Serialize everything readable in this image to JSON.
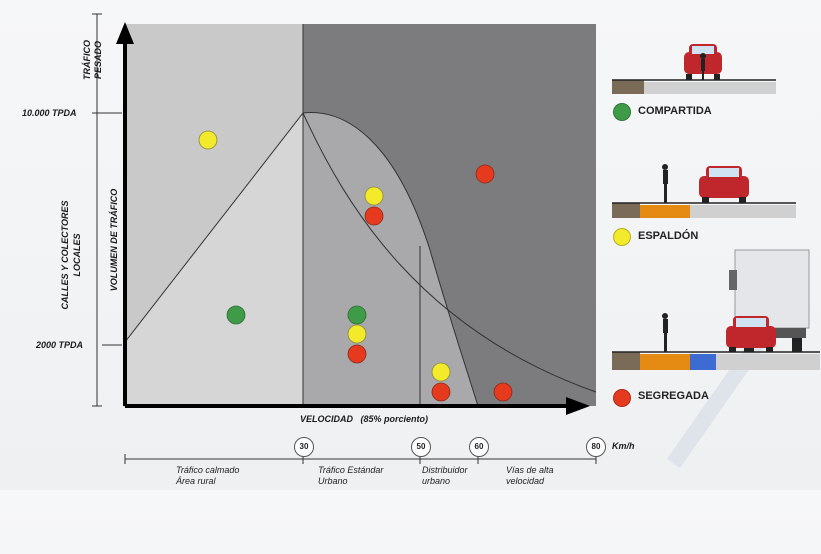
{
  "y_axis": {
    "top_category": "TRÁFICO PESADO",
    "mid_category": "CALLES Y COLECTORES LOCALES",
    "axis_label": "VOLUMEN DE TRÁFICO",
    "tick_high": "10.000 TPDA",
    "tick_low": "2000 TPDA"
  },
  "x_axis": {
    "label": "VELOCIDAD",
    "label_suffix": "(85% porciento)",
    "unit": "Km/h",
    "speeds": [
      "30",
      "50",
      "60",
      "80"
    ],
    "zones": [
      {
        "line1": "Tráfico calmado",
        "line2": "Área rural"
      },
      {
        "line1": "Tráfico Estándar",
        "line2": "Urbano"
      },
      {
        "line1": "Distribuidor",
        "line2": "urbano"
      },
      {
        "line1": "Vías de alta",
        "line2": "velocidad"
      }
    ]
  },
  "legend": {
    "items": [
      {
        "label": "COMPARTIDA",
        "color": "#3f9b48"
      },
      {
        "label": "ESPALDÓN",
        "color": "#f3ea2b"
      },
      {
        "label": "SEGREGADA",
        "color": "#e63a1f"
      }
    ]
  },
  "colors": {
    "zone_light": "#c9c9c9",
    "zone_dark": "#7c7c7e",
    "zone_mid": "#a9a9ab",
    "green": "#3f9b48",
    "yellow": "#f3ea2b",
    "red": "#e63a1f"
  }
}
